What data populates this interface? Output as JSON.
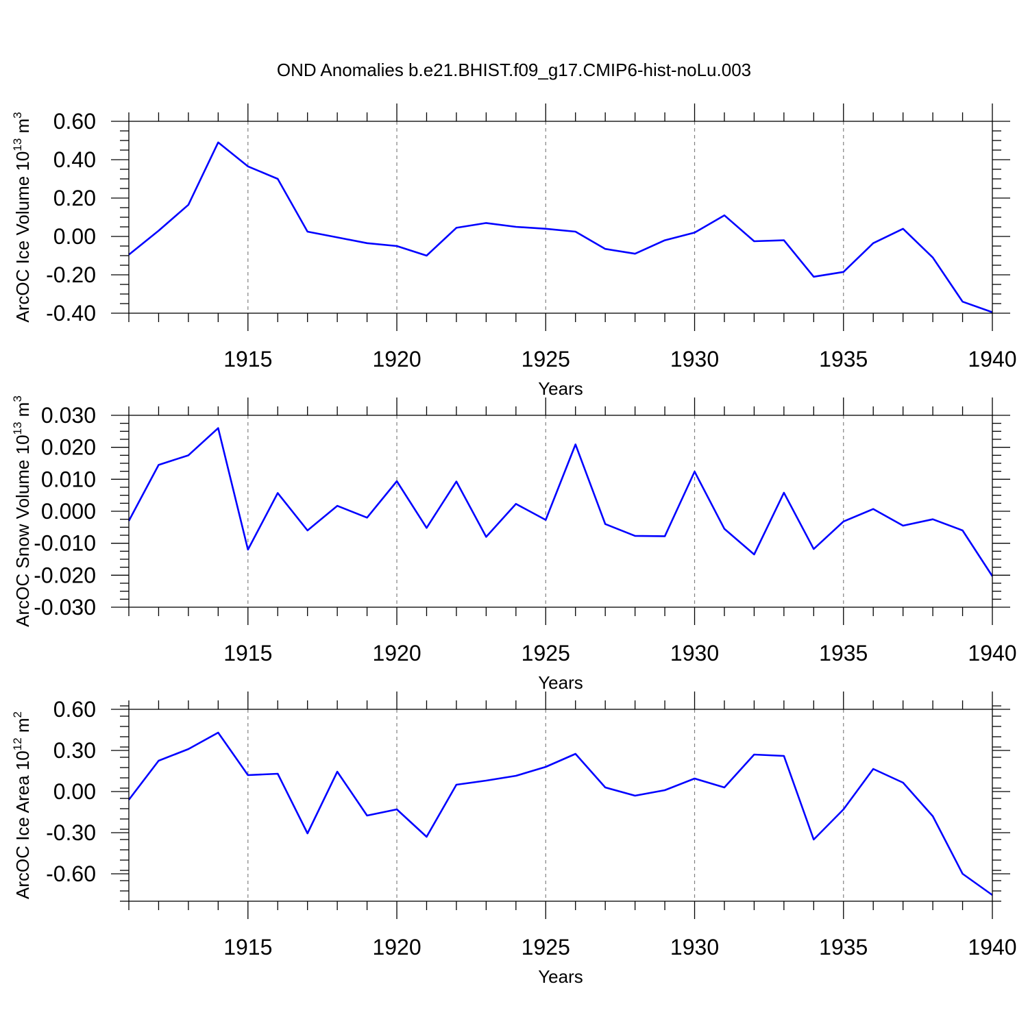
{
  "title": "OND Anomalies b.e21.BHIST.f09_g17.CMIP6-hist-noLu.003",
  "line_color": "#0000ff",
  "chart_data": [
    {
      "type": "line",
      "ylabel_main": "ArcOC Ice Volume 10",
      "ylabel_sup": "13",
      "ylabel_unit": " m",
      "ylabel_unit_sup": "3",
      "xlabel": "Years",
      "xlim": [
        1911,
        1940
      ],
      "ylim": [
        -0.4,
        0.6
      ],
      "yticks": [
        -0.4,
        -0.2,
        0.0,
        0.2,
        0.4,
        0.6
      ],
      "ytick_labels": [
        "-0.40",
        "-0.20",
        "0.00",
        "0.20",
        "0.40",
        "0.60"
      ],
      "yminor_step": 0.05,
      "xticks": [
        1915,
        1920,
        1925,
        1930,
        1935,
        1940
      ],
      "xtick_labels": [
        "1915",
        "1920",
        "1925",
        "1930",
        "1935",
        "1940"
      ],
      "grid": "dashed vertical at major x ticks",
      "x": [
        1911,
        1912,
        1913,
        1914,
        1915,
        1916,
        1917,
        1918,
        1919,
        1920,
        1921,
        1922,
        1923,
        1924,
        1925,
        1926,
        1927,
        1928,
        1929,
        1930,
        1931,
        1932,
        1933,
        1934,
        1935,
        1936,
        1937,
        1938,
        1939,
        1940
      ],
      "y": [
        -0.095,
        0.03,
        0.165,
        0.49,
        0.365,
        0.3,
        0.025,
        -0.005,
        -0.035,
        -0.05,
        -0.1,
        0.045,
        0.07,
        0.05,
        0.04,
        0.025,
        -0.065,
        -0.09,
        -0.02,
        0.02,
        0.11,
        -0.025,
        -0.02,
        -0.21,
        -0.185,
        -0.035,
        0.04,
        -0.11,
        -0.34,
        -0.395
      ]
    },
    {
      "type": "line",
      "ylabel_main": "ArcOC Snow Volume 10",
      "ylabel_sup": "13",
      "ylabel_unit": " m",
      "ylabel_unit_sup": "3",
      "xlabel": "Years",
      "xlim": [
        1911,
        1940
      ],
      "ylim": [
        -0.03,
        0.03
      ],
      "yticks": [
        -0.03,
        -0.02,
        -0.01,
        0.0,
        0.01,
        0.02,
        0.03
      ],
      "ytick_labels": [
        "-0.030",
        "-0.020",
        "-0.010",
        "0.000",
        "0.010",
        "0.020",
        "0.030"
      ],
      "yminor_step": 0.0025,
      "xticks": [
        1915,
        1920,
        1925,
        1930,
        1935,
        1940
      ],
      "xtick_labels": [
        "1915",
        "1920",
        "1925",
        "1930",
        "1935",
        "1940"
      ],
      "grid": "dashed vertical at major x ticks",
      "x": [
        1911,
        1912,
        1913,
        1914,
        1915,
        1916,
        1917,
        1918,
        1919,
        1920,
        1921,
        1922,
        1923,
        1924,
        1925,
        1926,
        1927,
        1928,
        1929,
        1930,
        1931,
        1932,
        1933,
        1934,
        1935,
        1936,
        1937,
        1938,
        1939,
        1940
      ],
      "y": [
        -0.003,
        0.0145,
        0.0175,
        0.026,
        -0.012,
        0.0057,
        -0.006,
        0.0017,
        -0.002,
        0.0094,
        -0.0052,
        0.0093,
        -0.008,
        0.0023,
        -0.0027,
        0.0209,
        -0.004,
        -0.0077,
        -0.0078,
        0.0124,
        -0.0055,
        -0.0135,
        0.0058,
        -0.0118,
        -0.0032,
        0.0007,
        -0.0045,
        -0.0025,
        -0.006,
        -0.0203
      ]
    },
    {
      "type": "line",
      "ylabel_main": "ArcOC Ice Area 10",
      "ylabel_sup": "12",
      "ylabel_unit": " m",
      "ylabel_unit_sup": "2",
      "xlabel": "Years",
      "xlim": [
        1911,
        1940
      ],
      "ylim": [
        -0.8,
        0.6
      ],
      "yticks": [
        -0.6,
        -0.3,
        0.0,
        0.3,
        0.6
      ],
      "ytick_labels": [
        "-0.60",
        "-0.30",
        "0.00",
        "0.30",
        "0.60"
      ],
      "yminor_step": 0.075,
      "xticks": [
        1915,
        1920,
        1925,
        1930,
        1935,
        1940
      ],
      "xtick_labels": [
        "1915",
        "1920",
        "1925",
        "1930",
        "1935",
        "1940"
      ],
      "grid": "dashed vertical at major x ticks",
      "x": [
        1911,
        1912,
        1913,
        1914,
        1915,
        1916,
        1917,
        1918,
        1919,
        1920,
        1921,
        1922,
        1923,
        1924,
        1925,
        1926,
        1927,
        1928,
        1929,
        1930,
        1931,
        1932,
        1933,
        1934,
        1935,
        1936,
        1937,
        1938,
        1939,
        1940
      ],
      "y": [
        -0.06,
        0.225,
        0.31,
        0.43,
        0.12,
        0.13,
        -0.305,
        0.145,
        -0.175,
        -0.13,
        -0.33,
        0.05,
        0.08,
        0.115,
        0.18,
        0.275,
        0.03,
        -0.03,
        0.01,
        0.095,
        0.03,
        0.27,
        0.26,
        -0.35,
        -0.13,
        0.165,
        0.065,
        -0.18,
        -0.6,
        -0.755
      ]
    }
  ]
}
